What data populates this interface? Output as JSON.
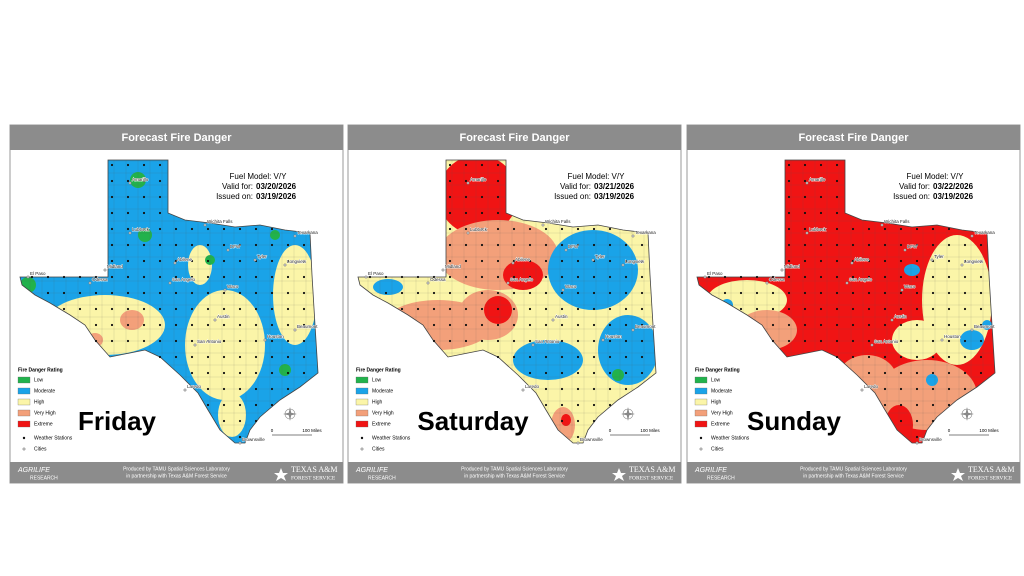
{
  "panels": [
    {
      "header": "Forecast Fire Danger",
      "fuel_model": "Fuel Model: V/Y",
      "valid_label": "Valid for:",
      "valid_date": "03/20/2026",
      "issued_label": "Issued on:",
      "issued_date": "03/19/2026",
      "day": "Friday"
    },
    {
      "header": "Forecast Fire Danger",
      "fuel_model": "Fuel Model: V/Y",
      "valid_label": "Valid for:",
      "valid_date": "03/21/2026",
      "issued_label": "Issued on:",
      "issued_date": "03/19/2026",
      "day": "Saturday"
    },
    {
      "header": "Forecast Fire Danger",
      "fuel_model": "Fuel Model: V/Y",
      "valid_label": "Valid for:",
      "valid_date": "03/22/2026",
      "issued_label": "Issued on:",
      "issued_date": "03/19/2026",
      "day": "Sunday"
    }
  ],
  "legend": {
    "title": "Fire Danger Rating",
    "items": [
      {
        "label": "Low",
        "color": "#22b24c"
      },
      {
        "label": "Moderate",
        "color": "#1aa3e8"
      },
      {
        "label": "High",
        "color": "#fbf5a8"
      },
      {
        "label": "Very High",
        "color": "#f3a07a"
      },
      {
        "label": "Extreme",
        "color": "#f01414"
      }
    ],
    "stations": "Weather Stations",
    "cities": "Cities"
  },
  "cities": [
    "Amarillo",
    "Lubbock",
    "Wichita Falls",
    "Texarkana",
    "El Paso",
    "Midland",
    "Odessa",
    "Abilene",
    "DFW",
    "Tyler",
    "Longview",
    "San Angelo",
    "Waco",
    "Austin",
    "San Antonio",
    "Houston",
    "Beaumont",
    "Laredo",
    "Brownsville"
  ],
  "scale": {
    "start": "0",
    "end": "100 Miles"
  },
  "footer": {
    "line1": "Produced by TAMU Spatial Sciences Laboratory",
    "line2": "in partnership with Texas A&M Forest Service",
    "logo_left_top": "AGRILIFE",
    "logo_left_bottom": "RESEARCH",
    "logo_right_top": "TEXAS A&M",
    "logo_right_bottom": "FOREST SERVICE"
  }
}
